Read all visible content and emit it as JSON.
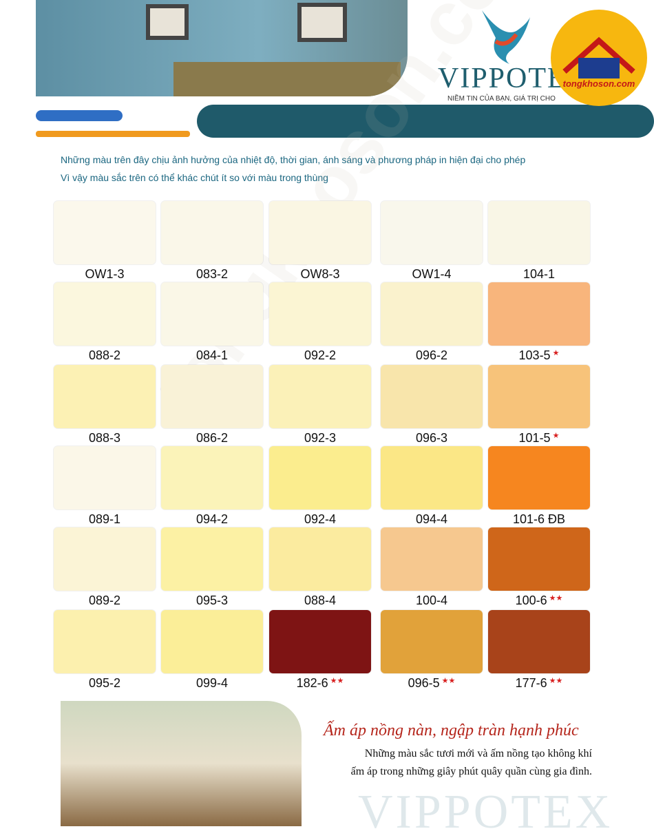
{
  "header": {
    "brand": "VIPPOTEX",
    "tagline": "NIỀM TIN CỦA BẠN, GIÁ TRỊ CHO",
    "badge": "tongkhoson.com"
  },
  "notice": [
    "Những màu trên đây chịu ảnh hưởng của nhiệt độ, thời gian, ánh sáng và phương pháp in hiện đại cho phép",
    "Vì vậy màu sắc trên có thể khác chút ít so với màu trong thùng"
  ],
  "swatches": [
    [
      {
        "code": "OW1-3",
        "color": "#fbf8ec"
      },
      {
        "code": "083-2",
        "color": "#faf7e9"
      },
      {
        "code": "OW8-3",
        "color": "#faf6e3"
      },
      {
        "code": "OW1-4",
        "color": "#f9f7ec"
      },
      {
        "code": "104-1",
        "color": "#f9f6e6"
      }
    ],
    [
      {
        "code": "088-2",
        "color": "#fbf7de"
      },
      {
        "code": "084-1",
        "color": "#faf7e7"
      },
      {
        "code": "092-2",
        "color": "#fbf5d3"
      },
      {
        "code": "096-2",
        "color": "#faf2cd"
      },
      {
        "code": "103-5",
        "color": "#f8b57c",
        "stars": "★"
      }
    ],
    [
      {
        "code": "088-3",
        "color": "#fcf1b4"
      },
      {
        "code": "086-2",
        "color": "#f9f2d7"
      },
      {
        "code": "092-3",
        "color": "#fbf1b8"
      },
      {
        "code": "096-3",
        "color": "#f8e5ab"
      },
      {
        "code": "101-5",
        "color": "#f7c37a",
        "stars": "★"
      }
    ],
    [
      {
        "code": "089-1",
        "color": "#fbf7e8"
      },
      {
        "code": "094-2",
        "color": "#fbf3b9"
      },
      {
        "code": "092-4",
        "color": "#fbed8e"
      },
      {
        "code": "094-4",
        "color": "#fbe786"
      },
      {
        "code": "101-6 ĐB",
        "color": "#f6861f"
      }
    ],
    [
      {
        "code": "089-2",
        "color": "#fbf4d6"
      },
      {
        "code": "095-3",
        "color": "#fcf1a4"
      },
      {
        "code": "088-4",
        "color": "#fbeb9f"
      },
      {
        "code": "100-4",
        "color": "#f6c88f"
      },
      {
        "code": "100-6",
        "color": "#cf661a",
        "stars": "★★"
      }
    ],
    [
      {
        "code": "095-2",
        "color": "#fcf0ae"
      },
      {
        "code": "099-4",
        "color": "#fbee98"
      },
      {
        "code": "182-6",
        "color": "#7e1414",
        "stars": "★★"
      },
      {
        "code": "096-5",
        "color": "#e1a23a",
        "stars": "★★"
      },
      {
        "code": "177-6",
        "color": "#a8431a",
        "stars": "★★"
      }
    ]
  ],
  "watermark": "tongkhoson.com",
  "footer": {
    "slogan": "Ấm áp nồng nàn, ngập tràn hạnh phúc",
    "lines": [
      "Những màu sắc tươi mới và ấm nồng tạo không khí",
      "ấm áp trong những giây phút quây quần cùng gia đình."
    ],
    "watermark": "VIPPOTEX"
  }
}
